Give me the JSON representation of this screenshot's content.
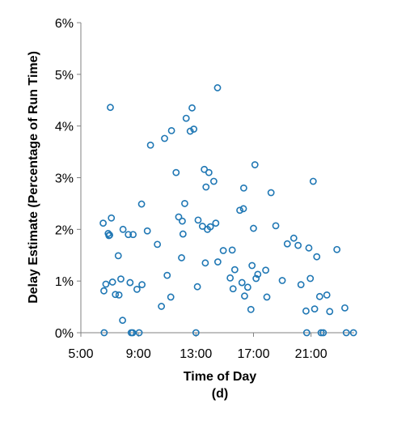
{
  "chart_data": {
    "type": "scatter",
    "xlabel": "Time of Day",
    "ylabel": "Delay Estimate (Percentage of Run Time)",
    "caption": "(d)",
    "x_unit": "hours",
    "xlim": [
      5,
      24
    ],
    "ylim": [
      0,
      6
    ],
    "xticks": [
      {
        "value": 5,
        "label": "5:00"
      },
      {
        "value": 9,
        "label": "9:00"
      },
      {
        "value": 13,
        "label": "13:00"
      },
      {
        "value": 17,
        "label": "17:00"
      },
      {
        "value": 21,
        "label": "21:00"
      }
    ],
    "yticks": [
      {
        "value": 0,
        "label": "0%"
      },
      {
        "value": 1,
        "label": "1%"
      },
      {
        "value": 2,
        "label": "2%"
      },
      {
        "value": 3,
        "label": "3%"
      },
      {
        "value": 4,
        "label": "4%"
      },
      {
        "value": 5,
        "label": "5%"
      },
      {
        "value": 6,
        "label": "6%"
      }
    ],
    "grid": false,
    "marker": "open-circle",
    "marker_color": "#1f77b4",
    "points": [
      {
        "x": 6.55,
        "y": 2.12
      },
      {
        "x": 6.6,
        "y": 0.81
      },
      {
        "x": 6.62,
        "y": 0.0
      },
      {
        "x": 6.74,
        "y": 0.94
      },
      {
        "x": 6.9,
        "y": 1.92
      },
      {
        "x": 6.95,
        "y": 1.88
      },
      {
        "x": 7.0,
        "y": 1.89
      },
      {
        "x": 7.05,
        "y": 4.36
      },
      {
        "x": 7.12,
        "y": 2.22
      },
      {
        "x": 7.2,
        "y": 0.98
      },
      {
        "x": 7.4,
        "y": 0.74
      },
      {
        "x": 7.6,
        "y": 1.49
      },
      {
        "x": 7.65,
        "y": 0.73
      },
      {
        "x": 7.78,
        "y": 1.04
      },
      {
        "x": 7.9,
        "y": 0.24
      },
      {
        "x": 7.93,
        "y": 2.0
      },
      {
        "x": 8.3,
        "y": 1.9
      },
      {
        "x": 8.42,
        "y": 0.97
      },
      {
        "x": 8.5,
        "y": 0.0
      },
      {
        "x": 8.6,
        "y": 0.0
      },
      {
        "x": 8.63,
        "y": 1.9
      },
      {
        "x": 8.9,
        "y": 0.84
      },
      {
        "x": 9.05,
        "y": 0.0
      },
      {
        "x": 9.22,
        "y": 2.49
      },
      {
        "x": 9.25,
        "y": 0.93
      },
      {
        "x": 9.62,
        "y": 1.97
      },
      {
        "x": 9.84,
        "y": 3.63
      },
      {
        "x": 10.32,
        "y": 1.71
      },
      {
        "x": 10.6,
        "y": 0.51
      },
      {
        "x": 10.82,
        "y": 3.76
      },
      {
        "x": 11.0,
        "y": 1.11
      },
      {
        "x": 11.25,
        "y": 0.69
      },
      {
        "x": 11.3,
        "y": 3.91
      },
      {
        "x": 11.62,
        "y": 3.1
      },
      {
        "x": 11.8,
        "y": 2.24
      },
      {
        "x": 12.0,
        "y": 1.45
      },
      {
        "x": 12.05,
        "y": 2.16
      },
      {
        "x": 12.1,
        "y": 1.91
      },
      {
        "x": 12.22,
        "y": 2.5
      },
      {
        "x": 12.32,
        "y": 4.15
      },
      {
        "x": 12.6,
        "y": 3.9
      },
      {
        "x": 12.73,
        "y": 4.35
      },
      {
        "x": 12.85,
        "y": 3.94
      },
      {
        "x": 13.0,
        "y": 0.0
      },
      {
        "x": 13.1,
        "y": 0.89
      },
      {
        "x": 13.15,
        "y": 2.18
      },
      {
        "x": 13.45,
        "y": 2.06
      },
      {
        "x": 13.58,
        "y": 3.16
      },
      {
        "x": 13.65,
        "y": 1.35
      },
      {
        "x": 13.7,
        "y": 2.82
      },
      {
        "x": 13.8,
        "y": 2.0
      },
      {
        "x": 13.9,
        "y": 3.1
      },
      {
        "x": 14.0,
        "y": 2.05
      },
      {
        "x": 14.24,
        "y": 2.93
      },
      {
        "x": 14.38,
        "y": 2.12
      },
      {
        "x": 14.5,
        "y": 4.74
      },
      {
        "x": 14.52,
        "y": 1.37
      },
      {
        "x": 14.9,
        "y": 1.59
      },
      {
        "x": 15.38,
        "y": 1.06
      },
      {
        "x": 15.52,
        "y": 1.6
      },
      {
        "x": 15.58,
        "y": 0.85
      },
      {
        "x": 15.7,
        "y": 1.22
      },
      {
        "x": 16.05,
        "y": 2.37
      },
      {
        "x": 16.2,
        "y": 0.97
      },
      {
        "x": 16.3,
        "y": 2.4
      },
      {
        "x": 16.32,
        "y": 2.8
      },
      {
        "x": 16.38,
        "y": 0.71
      },
      {
        "x": 16.6,
        "y": 0.88
      },
      {
        "x": 16.82,
        "y": 0.45
      },
      {
        "x": 16.9,
        "y": 1.3
      },
      {
        "x": 17.0,
        "y": 2.02
      },
      {
        "x": 17.1,
        "y": 3.25
      },
      {
        "x": 17.18,
        "y": 1.05
      },
      {
        "x": 17.3,
        "y": 1.13
      },
      {
        "x": 17.85,
        "y": 1.21
      },
      {
        "x": 17.93,
        "y": 0.69
      },
      {
        "x": 18.22,
        "y": 2.71
      },
      {
        "x": 18.55,
        "y": 2.07
      },
      {
        "x": 19.0,
        "y": 1.01
      },
      {
        "x": 19.35,
        "y": 1.72
      },
      {
        "x": 19.8,
        "y": 1.83
      },
      {
        "x": 20.1,
        "y": 1.69
      },
      {
        "x": 20.3,
        "y": 0.93
      },
      {
        "x": 20.65,
        "y": 0.42
      },
      {
        "x": 20.7,
        "y": 0.0
      },
      {
        "x": 20.85,
        "y": 1.64
      },
      {
        "x": 20.95,
        "y": 1.05
      },
      {
        "x": 21.15,
        "y": 2.93
      },
      {
        "x": 21.25,
        "y": 0.46
      },
      {
        "x": 21.4,
        "y": 1.47
      },
      {
        "x": 21.6,
        "y": 0.7
      },
      {
        "x": 21.7,
        "y": 0.0
      },
      {
        "x": 21.85,
        "y": 0.0
      },
      {
        "x": 22.1,
        "y": 0.73
      },
      {
        "x": 22.3,
        "y": 0.41
      },
      {
        "x": 22.8,
        "y": 1.61
      },
      {
        "x": 23.35,
        "y": 0.48
      },
      {
        "x": 23.45,
        "y": 0.0
      },
      {
        "x": 23.95,
        "y": 0.0
      }
    ]
  }
}
